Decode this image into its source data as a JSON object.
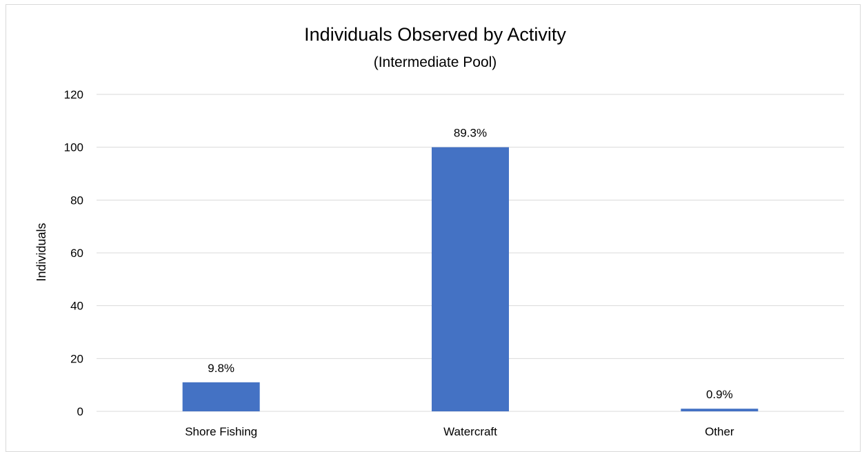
{
  "chart_data": {
    "type": "bar",
    "title": "Individuals Observed by Activity",
    "subtitle": "(Intermediate Pool)",
    "xlabel": "",
    "ylabel": "Individuals",
    "categories": [
      "Shore Fishing",
      "Watercraft",
      "Other"
    ],
    "values": [
      11,
      100,
      1
    ],
    "data_labels": [
      "9.8%",
      "89.3%",
      "0.9%"
    ],
    "ylim": [
      0,
      120
    ],
    "yticks": [
      0,
      20,
      40,
      60,
      80,
      100,
      120
    ],
    "ytick_labels": [
      "0",
      "20",
      "40",
      "60",
      "80",
      "100",
      "120"
    ],
    "grid": true,
    "legend": "none",
    "bar_color": "#4472C4",
    "grid_color": "#d9d9d9"
  }
}
